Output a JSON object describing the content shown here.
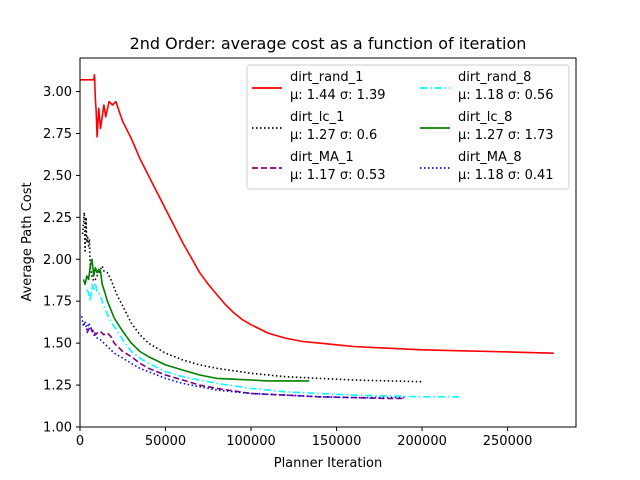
{
  "chart_data": {
    "type": "line",
    "title": "2nd Order: average cost as a function of iteration",
    "xlabel": "Planner Iteration",
    "ylabel": "Average Path Cost",
    "xlim": [
      0,
      290000
    ],
    "ylim": [
      1.0,
      3.2
    ],
    "xticks": [
      0,
      50000,
      100000,
      150000,
      200000,
      250000
    ],
    "xtick_labels": [
      "0",
      "50000",
      "100000",
      "150000",
      "200000",
      "250000"
    ],
    "yticks": [
      1.0,
      1.25,
      1.5,
      1.75,
      2.0,
      2.25,
      2.5,
      2.75,
      3.0
    ],
    "ytick_labels": [
      "1.00",
      "1.25",
      "1.50",
      "1.75",
      "2.00",
      "2.25",
      "2.50",
      "2.75",
      "3.00"
    ],
    "legend_position": "top-right",
    "series": [
      {
        "name": "dirt_rand_1",
        "stats": "μ: 1.44 σ: 1.39",
        "color": "#ff0000",
        "dash": "solid",
        "x": [
          0,
          8000,
          8500,
          9000,
          9500,
          10000,
          11000,
          12000,
          14000,
          15000,
          17000,
          19000,
          21000,
          23000,
          25000,
          30000,
          35000,
          40000,
          45000,
          50000,
          55000,
          60000,
          65000,
          70000,
          75000,
          80000,
          85000,
          90000,
          95000,
          100000,
          110000,
          120000,
          130000,
          140000,
          150000,
          160000,
          180000,
          200000,
          220000,
          240000,
          260000,
          277000
        ],
        "y": [
          3.07,
          3.07,
          3.1,
          2.95,
          2.88,
          2.73,
          2.9,
          2.78,
          2.92,
          2.85,
          2.94,
          2.92,
          2.94,
          2.88,
          2.82,
          2.72,
          2.6,
          2.5,
          2.4,
          2.3,
          2.2,
          2.1,
          2.01,
          1.92,
          1.85,
          1.79,
          1.73,
          1.68,
          1.64,
          1.61,
          1.56,
          1.53,
          1.51,
          1.5,
          1.49,
          1.48,
          1.47,
          1.46,
          1.455,
          1.45,
          1.445,
          1.44
        ]
      },
      {
        "name": "dirt_lc_1",
        "stats": "μ: 1.27 σ: 0.6",
        "color": "#000000",
        "dash": "dotted",
        "x": [
          1500,
          2500,
          3000,
          3500,
          4000,
          4500,
          5000,
          5500,
          6000,
          7000,
          8000,
          9000,
          10000,
          11000,
          12000,
          13000,
          14000,
          16000,
          18000,
          20000,
          22000,
          25000,
          30000,
          35000,
          40000,
          50000,
          60000,
          70000,
          80000,
          100000,
          120000,
          140000,
          160000,
          180000,
          200000
        ],
        "y": [
          2.15,
          2.28,
          2.05,
          2.25,
          2.1,
          2.13,
          2.08,
          2.12,
          1.95,
          1.9,
          1.87,
          1.88,
          1.9,
          1.92,
          1.94,
          1.96,
          1.93,
          1.92,
          1.88,
          1.83,
          1.78,
          1.72,
          1.62,
          1.55,
          1.5,
          1.44,
          1.4,
          1.37,
          1.35,
          1.32,
          1.3,
          1.29,
          1.28,
          1.275,
          1.27
        ]
      },
      {
        "name": "dirt_MA_1",
        "stats": "μ: 1.17 σ: 0.53",
        "color": "#800080",
        "dash": "dashed",
        "x": [
          4000,
          5000,
          6000,
          7000,
          8000,
          9000,
          10000,
          12000,
          14000,
          16000,
          18000,
          20000,
          22000,
          25000,
          30000,
          35000,
          40000,
          50000,
          60000,
          70000,
          80000,
          100000,
          120000,
          140000,
          160000,
          180000,
          190000
        ],
        "y": [
          1.56,
          1.58,
          1.6,
          1.57,
          1.58,
          1.55,
          1.56,
          1.57,
          1.55,
          1.56,
          1.54,
          1.5,
          1.48,
          1.45,
          1.42,
          1.38,
          1.35,
          1.31,
          1.28,
          1.25,
          1.23,
          1.2,
          1.19,
          1.18,
          1.175,
          1.17,
          1.17
        ]
      },
      {
        "name": "dirt_rand_8",
        "stats": "μ: 1.18 σ: 0.56",
        "color": "#00ffff",
        "dash": "dashdot",
        "x": [
          4000,
          5000,
          6000,
          7000,
          8000,
          9000,
          10000,
          11000,
          12000,
          14000,
          16000,
          18000,
          20000,
          25000,
          30000,
          35000,
          40000,
          50000,
          60000,
          70000,
          80000,
          100000,
          120000,
          140000,
          160000,
          180000,
          200000,
          222000
        ],
        "y": [
          1.82,
          1.8,
          1.75,
          1.85,
          1.82,
          1.86,
          1.8,
          1.8,
          1.78,
          1.72,
          1.67,
          1.63,
          1.6,
          1.52,
          1.45,
          1.41,
          1.38,
          1.33,
          1.3,
          1.28,
          1.26,
          1.23,
          1.21,
          1.2,
          1.19,
          1.185,
          1.18,
          1.18
        ]
      },
      {
        "name": "dirt_lc_8",
        "stats": "μ: 1.27 σ: 1.73",
        "color": "#008000",
        "dash": "solid",
        "x": [
          2000,
          3000,
          4000,
          5000,
          6000,
          7000,
          8000,
          9000,
          10000,
          11000,
          12000,
          13000,
          14000,
          16000,
          18000,
          20000,
          25000,
          30000,
          35000,
          40000,
          50000,
          60000,
          70000,
          80000,
          90000,
          100000,
          110000,
          120000,
          134000
        ],
        "y": [
          1.88,
          1.85,
          1.9,
          1.88,
          1.96,
          2.0,
          1.9,
          1.95,
          1.92,
          1.94,
          1.93,
          1.85,
          1.82,
          1.75,
          1.7,
          1.65,
          1.57,
          1.5,
          1.45,
          1.42,
          1.37,
          1.34,
          1.31,
          1.29,
          1.285,
          1.28,
          1.275,
          1.275,
          1.275
        ]
      },
      {
        "name": "dirt_MA_8",
        "stats": "μ: 1.18 σ: 0.41",
        "color": "#0000ff",
        "dash": "dotted",
        "x": [
          1000,
          2000,
          3000,
          4000,
          5000,
          6000,
          7000,
          8000,
          9000,
          10000,
          12000,
          14000,
          16000,
          18000,
          20000,
          25000,
          30000,
          35000,
          40000,
          50000,
          60000,
          70000,
          80000,
          100000,
          120000,
          140000,
          160000,
          180000,
          190000
        ],
        "y": [
          1.66,
          1.6,
          1.63,
          1.58,
          1.62,
          1.6,
          1.58,
          1.55,
          1.54,
          1.53,
          1.52,
          1.5,
          1.48,
          1.46,
          1.44,
          1.41,
          1.38,
          1.35,
          1.33,
          1.29,
          1.26,
          1.24,
          1.22,
          1.2,
          1.19,
          1.18,
          1.175,
          1.175,
          1.175
        ]
      }
    ]
  }
}
